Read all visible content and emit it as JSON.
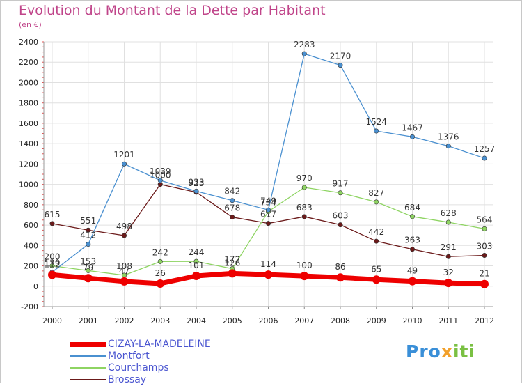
{
  "header": {
    "title": "Evolution du Montant de la Dette par Habitant",
    "subtitle": "(en €)"
  },
  "logo": {
    "part1": "Pro",
    "part2": "x",
    "part3": "iti"
  },
  "chart_data": {
    "type": "line",
    "x": [
      "2000",
      "2001",
      "2002",
      "2003",
      "2004",
      "2005",
      "2006",
      "2007",
      "2008",
      "2009",
      "2010",
      "2011",
      "2012"
    ],
    "ylim": [
      -200,
      2400
    ],
    "yticks": [
      -200,
      0,
      200,
      400,
      600,
      800,
      1000,
      1200,
      1400,
      1600,
      1800,
      2000,
      2200,
      2400
    ],
    "grid": true,
    "legend_position": "bottom-left",
    "series": [
      {
        "name": "Brossay",
        "color": "#6b1a1a",
        "values": [
          615,
          551,
          498,
          1000,
          923,
          678,
          617,
          683,
          603,
          442,
          363,
          291,
          303
        ]
      },
      {
        "name": "Courchamps",
        "color": "#8ed462",
        "values": [
          200,
          153,
          108,
          242,
          244,
          172,
          734,
          970,
          917,
          827,
          684,
          628,
          564
        ]
      },
      {
        "name": "Montfort",
        "color": "#4a90d0",
        "values": [
          139,
          412,
          1201,
          1039,
          933,
          842,
          749,
          2283,
          2170,
          1524,
          1467,
          1376,
          1257
        ]
      },
      {
        "name": "CIZAY-LA-MADELEINE",
        "color": "#ee0000",
        "values": [
          112,
          79,
          47,
          26,
          101,
          126,
          114,
          100,
          86,
          65,
          49,
          32,
          21
        ]
      }
    ],
    "legend_order": [
      "CIZAY-LA-MADELEINE",
      "Montfort",
      "Courchamps",
      "Brossay"
    ]
  }
}
